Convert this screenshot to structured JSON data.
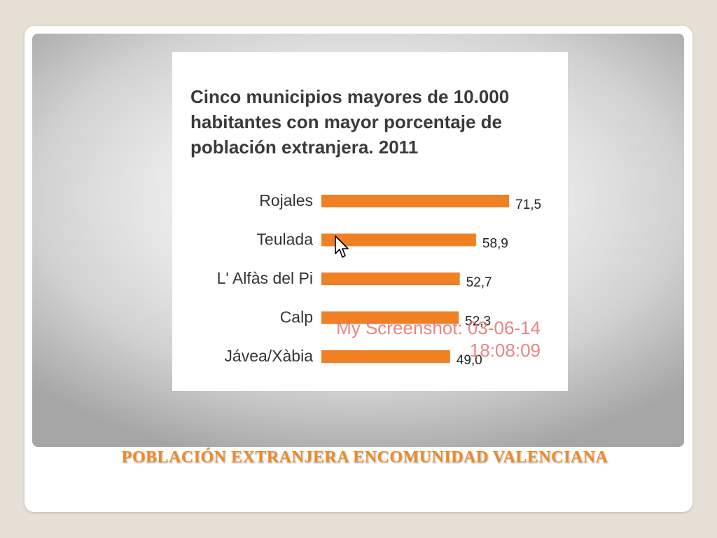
{
  "slide": {
    "title": "POBLACIÓN EXTRANJERA ENCOMUNIDAD VALENCIANA"
  },
  "chart_image": {
    "watermark_line1": "My Screenshot: 03-06-14",
    "watermark_line2": "18:08:09",
    "cursor_icon": "mouse-pointer-icon"
  },
  "colors": {
    "bar": "#f08024",
    "title_text": "#f08a24",
    "watermark": "#e86e6e"
  },
  "chart_data": {
    "type": "bar",
    "orientation": "horizontal",
    "title": "Cinco municipios mayores de 10.000 habitantes con mayor porcentaje de población extranjera. 2011",
    "categories": [
      "Rojales",
      "Teulada",
      "L' Alfàs del Pi",
      "Calp",
      "Jávea/Xàbia"
    ],
    "values": [
      71.5,
      58.9,
      52.7,
      52.3,
      49.0
    ],
    "value_labels": [
      "71,5",
      "58,9",
      "52,7",
      "52,3",
      "49,0"
    ],
    "xlabel": "",
    "ylabel": "",
    "xlim": [
      0,
      72
    ],
    "grid": false,
    "legend": "none"
  }
}
